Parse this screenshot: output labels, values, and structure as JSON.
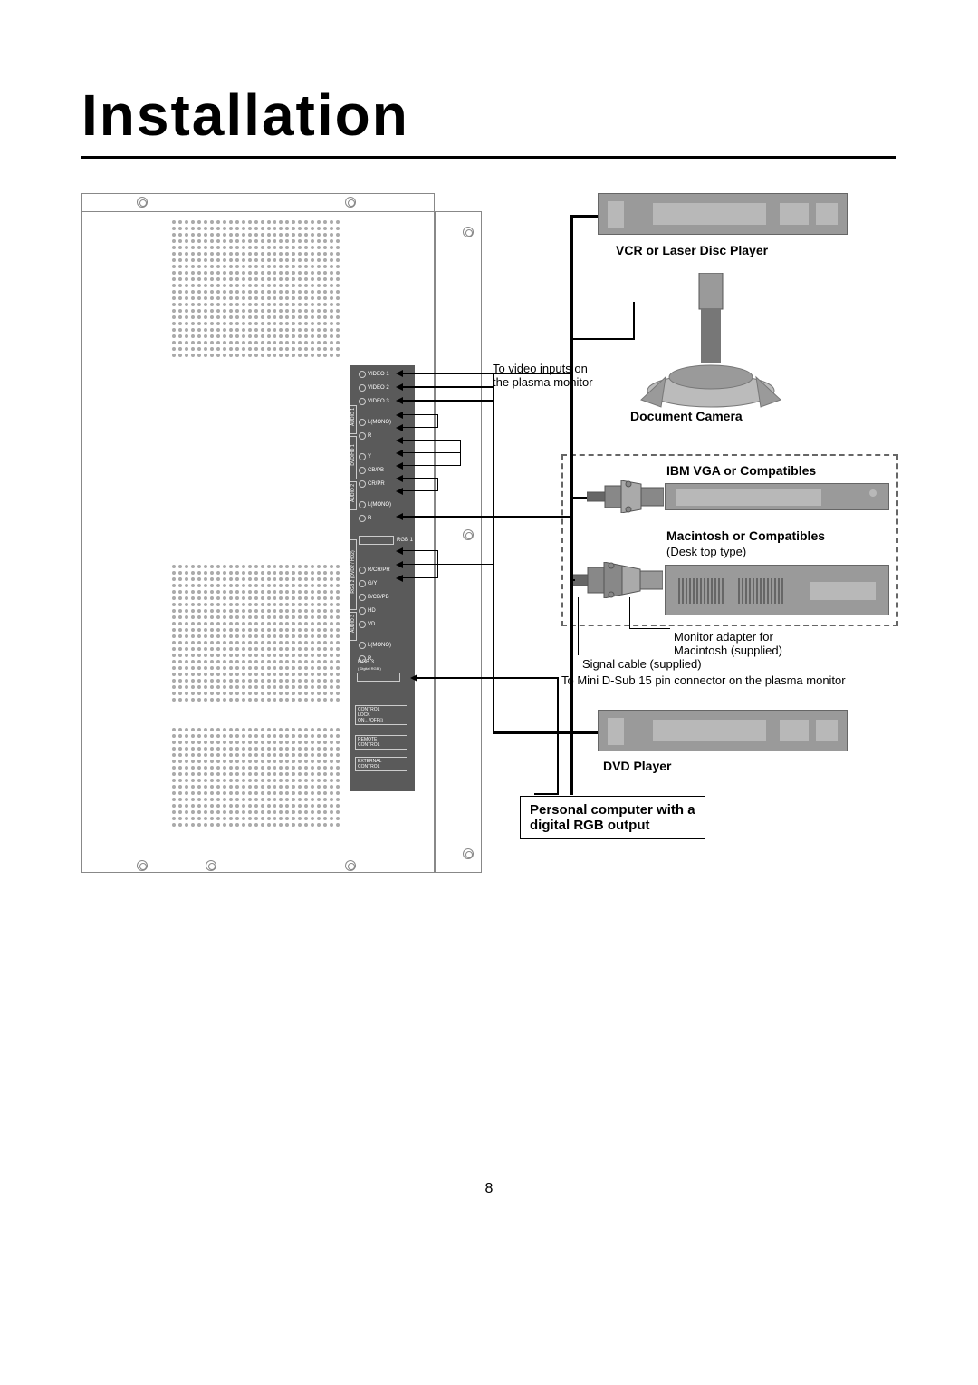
{
  "title": "Installation",
  "page_number": "8",
  "panel": {
    "rows": [
      {
        "label": "VIDEO 1"
      },
      {
        "label": "VIDEO 2"
      },
      {
        "label": "VIDEO 3"
      },
      {
        "label": "L(MONO)"
      },
      {
        "label": "R"
      },
      {
        "label": "Y"
      },
      {
        "label": "CB/PB"
      },
      {
        "label": "CR/PR"
      },
      {
        "label": "L(MONO)"
      },
      {
        "label": "R"
      },
      {
        "label": "RGB 1"
      },
      {
        "label": "R/CR/PR"
      },
      {
        "label": "G/Y"
      },
      {
        "label": "B/CB/PB"
      },
      {
        "label": "HD"
      },
      {
        "label": "VD"
      },
      {
        "label": "L(MONO)"
      },
      {
        "label": "R"
      },
      {
        "label": "RGB 3"
      }
    ],
    "rgb3_sub": "( Digital RGB )",
    "side_labels": [
      "AUDIO 1",
      "DVD/HD 1",
      "AUDIO 2",
      "RGB 2 (DVD2 / HD2)",
      "AUDIO 3"
    ],
    "control_lock": "CONTROL\nLOCK\nON←/OFF⊡",
    "remote": "REMOTE\nCONTROL",
    "external": "EXTERNAL\nCONTROL"
  },
  "labels": {
    "vcr": "VCR or Laser Disc Player",
    "doc_cam": "Document Camera",
    "video_inputs_1": "To video inputs on",
    "video_inputs_2": "the plasma monitor",
    "ibm": "IBM VGA or Compatibles",
    "mac": "Macintosh or Compatibles",
    "mac_sub": "(Desk top type)",
    "adapter_1": "Monitor adapter for",
    "adapter_2": "Macintosh (supplied)",
    "signal_cable": "Signal cable (supplied)",
    "mini_dsub": "To Mini D-Sub 15 pin connector on the plasma monitor",
    "dvd": "DVD Player",
    "pc_1": "Personal computer with a",
    "pc_2": "digital RGB output"
  },
  "colors": {
    "panel_bg": "#5a5a5a",
    "device_bg": "#9a9a9a",
    "device_slot": "#b8b8b8",
    "line": "#000000",
    "dashed": "#666666",
    "vent": "#aaaaaa"
  }
}
